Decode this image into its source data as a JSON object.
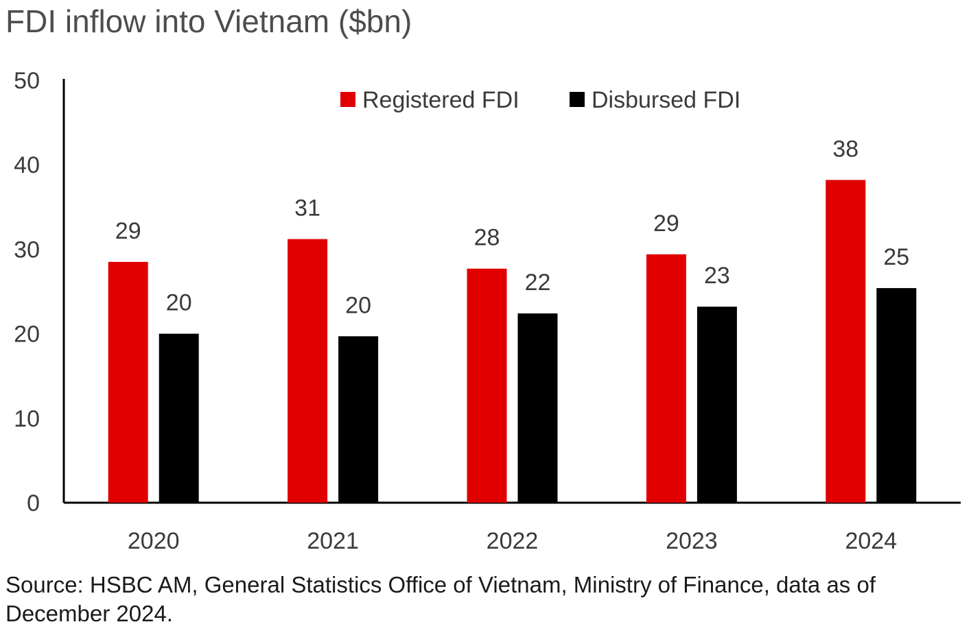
{
  "chart_data": {
    "type": "bar",
    "title": "FDI inflow into Vietnam ($bn)",
    "categories": [
      "2020",
      "2021",
      "2022",
      "2023",
      "2024"
    ],
    "series": [
      {
        "name": "Registered FDI",
        "color": "#e00000",
        "values": [
          28.5,
          31.2,
          27.7,
          29.4,
          38.2
        ],
        "labels": [
          "29",
          "31",
          "28",
          "29",
          "38"
        ]
      },
      {
        "name": "Disbursed FDI",
        "color": "#000000",
        "values": [
          20.0,
          19.7,
          22.4,
          23.2,
          25.4
        ],
        "labels": [
          "20",
          "20",
          "22",
          "23",
          "25"
        ]
      }
    ],
    "ylim": [
      0,
      50
    ],
    "yticks": [
      "0",
      "10",
      "20",
      "30",
      "40",
      "50"
    ],
    "xlabel": "",
    "ylabel": "",
    "legend_position": "top-right",
    "grid": false
  },
  "footer": {
    "source": "Source: HSBC AM, General Statistics Office of Vietnam, Ministry of Finance, data as of December 2024."
  }
}
